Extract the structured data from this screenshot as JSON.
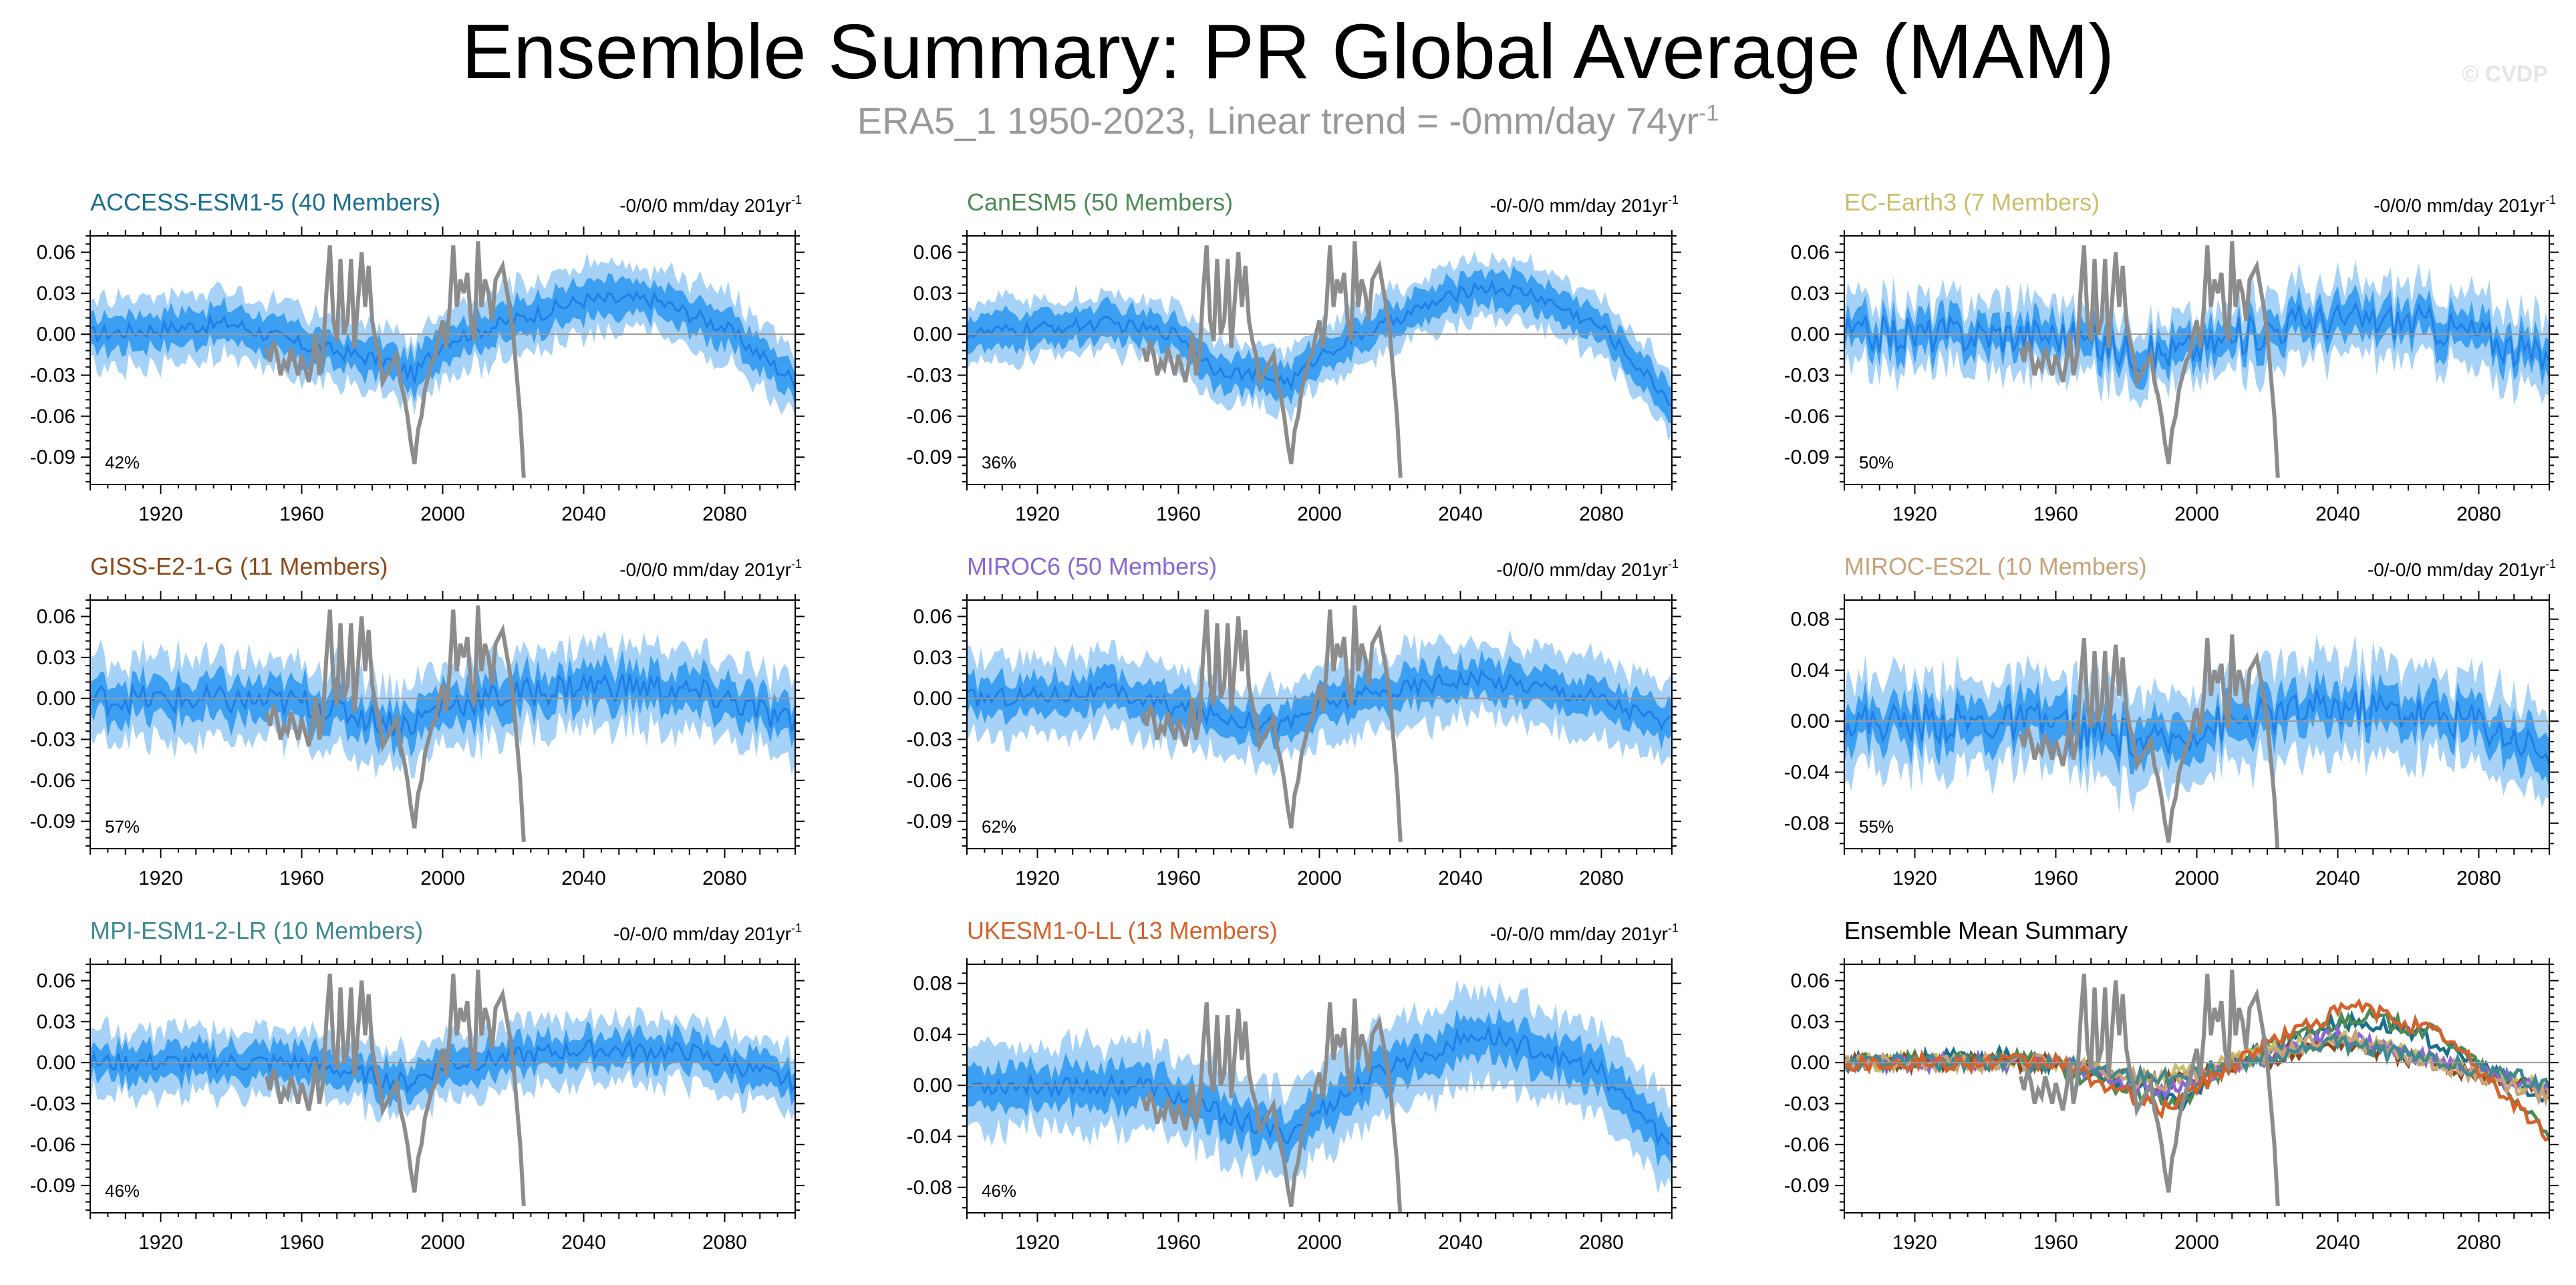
{
  "title": "Ensemble Summary: PR Global Average (MAM)",
  "subtitle": {
    "text": "ERA5_1 1950-2023, Linear trend = -0mm/day 74yr",
    "superscript": "-1"
  },
  "watermark": "© CVDP",
  "colors": {
    "band_outer": "#a6d2f8",
    "band_inner": "#3c9ff2",
    "mean_line": "#1f7fe6",
    "obs_line": "#8c8c8c",
    "zero_line": "#9a9a9a",
    "axis": "#000000"
  },
  "chart_data": [
    {
      "id": "access",
      "type": "area",
      "title": "ACCESS-ESM1-5 (40 Members)",
      "title_color": "#1a6e8e",
      "trend": "-0/0/0 mm/day 201yr",
      "trend_sup": "-1",
      "percent": "42%",
      "x_range": [
        1900,
        2100
      ],
      "y_range": [
        -0.11,
        0.072
      ],
      "xticks": [
        1920,
        1960,
        2000,
        2040,
        2080
      ],
      "yticks": [
        0.06,
        0.03,
        0.0,
        -0.03,
        -0.06,
        -0.09
      ],
      "ytick_labels": [
        "0.06",
        "0.03",
        "0.00",
        "-0.03",
        "-0.06",
        "-0.09"
      ],
      "mean_shape": [
        [
          1900,
          0
        ],
        [
          1940,
          0.008
        ],
        [
          1960,
          -0.008
        ],
        [
          1985,
          -0.02
        ],
        [
          1992,
          -0.03
        ],
        [
          2000,
          -0.005
        ],
        [
          2020,
          0.01
        ],
        [
          2040,
          0.025
        ],
        [
          2060,
          0.025
        ],
        [
          2080,
          0.005
        ],
        [
          2100,
          -0.035
        ]
      ],
      "noise": 0.006,
      "inner_width": 0.013,
      "outer_width": 0.025
    },
    {
      "id": "canesm",
      "type": "area",
      "title": "CanESM5 (50 Members)",
      "title_color": "#4e8a56",
      "trend": "-0/-0/0 mm/day 201yr",
      "trend_sup": "-1",
      "percent": "36%",
      "x_range": [
        1900,
        2100
      ],
      "y_range": [
        -0.11,
        0.072
      ],
      "xticks": [
        1920,
        1960,
        2000,
        2040,
        2080
      ],
      "yticks": [
        0.06,
        0.03,
        0.0,
        -0.03,
        -0.06,
        -0.09
      ],
      "ytick_labels": [
        "0.06",
        "0.03",
        "0.00",
        "-0.03",
        "-0.06",
        "-0.09"
      ],
      "mean_shape": [
        [
          1900,
          0
        ],
        [
          1940,
          0.008
        ],
        [
          1960,
          0
        ],
        [
          1970,
          -0.025
        ],
        [
          1992,
          -0.035
        ],
        [
          2000,
          -0.015
        ],
        [
          2025,
          0.015
        ],
        [
          2045,
          0.035
        ],
        [
          2060,
          0.03
        ],
        [
          2080,
          0.005
        ],
        [
          2100,
          -0.05
        ]
      ],
      "noise": 0.005,
      "inner_width": 0.012,
      "outer_width": 0.022
    },
    {
      "id": "ecearth",
      "type": "area",
      "title": "EC-Earth3 (7 Members)",
      "title_color": "#c9bf6a",
      "trend": "-0/0/0 mm/day 201yr",
      "trend_sup": "-1",
      "percent": "50%",
      "x_range": [
        1900,
        2100
      ],
      "y_range": [
        -0.11,
        0.072
      ],
      "xticks": [
        1920,
        1960,
        2000,
        2040,
        2080
      ],
      "yticks": [
        0.06,
        0.03,
        0.0,
        -0.03,
        -0.06,
        -0.09
      ],
      "ytick_labels": [
        "0.06",
        "0.03",
        "0.00",
        "-0.03",
        "-0.06",
        "-0.09"
      ],
      "mean_shape": [
        [
          1900,
          0
        ],
        [
          1960,
          0
        ],
        [
          1985,
          -0.015
        ],
        [
          2000,
          -0.01
        ],
        [
          2030,
          0.01
        ],
        [
          2060,
          0.01
        ],
        [
          2080,
          0
        ],
        [
          2100,
          -0.02
        ]
      ],
      "noise": 0.014,
      "inner_width": 0.012,
      "outer_width": 0.026
    },
    {
      "id": "giss",
      "type": "area",
      "title": "GISS-E2-1-G (11 Members)",
      "title_color": "#8a4a1a",
      "trend": "-0/0/0 mm/day 201yr",
      "trend_sup": "-1",
      "percent": "57%",
      "x_range": [
        1900,
        2100
      ],
      "y_range": [
        -0.11,
        0.072
      ],
      "xticks": [
        1920,
        1960,
        2000,
        2040,
        2080
      ],
      "yticks": [
        0.06,
        0.03,
        0.0,
        -0.03,
        -0.06,
        -0.09
      ],
      "ytick_labels": [
        "0.06",
        "0.03",
        "0.00",
        "-0.03",
        "-0.06",
        "-0.09"
      ],
      "mean_shape": [
        [
          1900,
          0
        ],
        [
          1960,
          -0.003
        ],
        [
          1990,
          -0.02
        ],
        [
          2000,
          -0.005
        ],
        [
          2040,
          0.01
        ],
        [
          2060,
          0.008
        ],
        [
          2080,
          0
        ],
        [
          2100,
          -0.02
        ]
      ],
      "noise": 0.011,
      "inner_width": 0.014,
      "outer_width": 0.03
    },
    {
      "id": "miroc6",
      "type": "area",
      "title": "MIROC6 (50 Members)",
      "title_color": "#8b66d6",
      "trend": "-0/0/0 mm/day 201yr",
      "trend_sup": "-1",
      "percent": "62%",
      "x_range": [
        1900,
        2100
      ],
      "y_range": [
        -0.11,
        0.072
      ],
      "xticks": [
        1920,
        1960,
        2000,
        2040,
        2080
      ],
      "yticks": [
        0.06,
        0.03,
        0.0,
        -0.03,
        -0.06,
        -0.09
      ],
      "ytick_labels": [
        "0.06",
        "0.03",
        "0.00",
        "-0.03",
        "-0.06",
        "-0.09"
      ],
      "mean_shape": [
        [
          1900,
          0
        ],
        [
          1940,
          0.005
        ],
        [
          1965,
          -0.01
        ],
        [
          1990,
          -0.02
        ],
        [
          2000,
          -0.005
        ],
        [
          2040,
          0.015
        ],
        [
          2060,
          0.01
        ],
        [
          2080,
          0
        ],
        [
          2100,
          -0.02
        ]
      ],
      "noise": 0.007,
      "inner_width": 0.013,
      "outer_width": 0.028
    },
    {
      "id": "mirocesl",
      "type": "area",
      "title": "MIROC-ES2L (10 Members)",
      "title_color": "#c9a27a",
      "trend": "-0/-0/0 mm/day 201yr",
      "trend_sup": "-1",
      "percent": "55%",
      "x_range": [
        1900,
        2100
      ],
      "y_range": [
        -0.1,
        0.095
      ],
      "xticks": [
        1920,
        1960,
        2000,
        2040,
        2080
      ],
      "yticks": [
        0.08,
        0.04,
        0.0,
        -0.04,
        -0.08
      ],
      "ytick_labels": [
        "0.08",
        "0.04",
        "0.00",
        "-0.04",
        "-0.08"
      ],
      "mean_shape": [
        [
          1900,
          0
        ],
        [
          1960,
          -0.002
        ],
        [
          1990,
          -0.02
        ],
        [
          2000,
          -0.005
        ],
        [
          2040,
          0.012
        ],
        [
          2060,
          0.008
        ],
        [
          2080,
          0
        ],
        [
          2100,
          -0.025
        ]
      ],
      "noise": 0.016,
      "inner_width": 0.016,
      "outer_width": 0.036
    },
    {
      "id": "mpi",
      "type": "area",
      "title": "MPI-ESM1-2-LR (10 Members)",
      "title_color": "#3f8a8e",
      "trend": "-0/-0/0 mm/day 201yr",
      "trend_sup": "-1",
      "percent": "46%",
      "x_range": [
        1900,
        2100
      ],
      "y_range": [
        -0.11,
        0.072
      ],
      "xticks": [
        1920,
        1960,
        2000,
        2040,
        2080
      ],
      "yticks": [
        0.06,
        0.03,
        0.0,
        -0.03,
        -0.06,
        -0.09
      ],
      "ytick_labels": [
        "0.06",
        "0.03",
        "0.00",
        "-0.03",
        "-0.06",
        "-0.09"
      ],
      "mean_shape": [
        [
          1900,
          0
        ],
        [
          1960,
          0
        ],
        [
          1990,
          -0.015
        ],
        [
          2000,
          -0.002
        ],
        [
          2040,
          0.01
        ],
        [
          2070,
          0.008
        ],
        [
          2100,
          -0.015
        ]
      ],
      "noise": 0.007,
      "inner_width": 0.012,
      "outer_width": 0.024
    },
    {
      "id": "ukesm",
      "type": "area",
      "title": "UKESM1-0-LL (13 Members)",
      "title_color": "#d4622a",
      "trend": "-0/-0/0 mm/day 201yr",
      "trend_sup": "-1",
      "percent": "46%",
      "x_range": [
        1900,
        2100
      ],
      "y_range": [
        -0.1,
        0.095
      ],
      "xticks": [
        1920,
        1960,
        2000,
        2040,
        2080
      ],
      "yticks": [
        0.08,
        0.04,
        0.0,
        -0.04,
        -0.08
      ],
      "ytick_labels": [
        "0.08",
        "0.04",
        "0.00",
        "-0.04",
        "-0.08"
      ],
      "mean_shape": [
        [
          1900,
          0
        ],
        [
          1950,
          0
        ],
        [
          1965,
          -0.015
        ],
        [
          1990,
          -0.04
        ],
        [
          2000,
          -0.02
        ],
        [
          2020,
          0.015
        ],
        [
          2045,
          0.04
        ],
        [
          2060,
          0.03
        ],
        [
          2080,
          0.01
        ],
        [
          2100,
          -0.05
        ]
      ],
      "noise": 0.008,
      "inner_width": 0.016,
      "outer_width": 0.034
    },
    {
      "id": "summary",
      "type": "line",
      "title": "Ensemble Mean Summary",
      "title_color": "#000000",
      "x_range": [
        1900,
        2100
      ],
      "y_range": [
        -0.11,
        0.072
      ],
      "xticks": [
        1920,
        1960,
        2000,
        2040,
        2080
      ],
      "yticks": [
        0.06,
        0.03,
        0.0,
        -0.03,
        -0.06,
        -0.09
      ],
      "ytick_labels": [
        "0.06",
        "0.03",
        "0.00",
        "-0.03",
        "-0.06",
        "-0.09"
      ],
      "series_colors": [
        "#1a6e8e",
        "#4e8a56",
        "#c9bf6a",
        "#8a4a1a",
        "#8b66d6",
        "#c9a27a",
        "#3f8a8e",
        "#d4622a"
      ]
    }
  ],
  "obs_series": {
    "name": "ERA5_1",
    "x": [
      1950,
      1951,
      1952,
      1953,
      1954,
      1955,
      1956,
      1957,
      1958,
      1959,
      1960,
      1961,
      1962,
      1963,
      1964,
      1965,
      1966,
      1967,
      1968,
      1969,
      1970,
      1971,
      1972,
      1973,
      1974,
      1975,
      1976,
      1977,
      1978,
      1979,
      1980,
      1981,
      1982,
      1983,
      1984,
      1985,
      1986,
      1987,
      1988,
      1989,
      1990,
      1991,
      1992,
      1993,
      1994,
      1995,
      1996,
      1997,
      1998,
      1999,
      2000,
      2001,
      2002,
      2003,
      2004,
      2005,
      2006,
      2007,
      2008,
      2009,
      2010,
      2011,
      2012,
      2013,
      2014,
      2015,
      2016,
      2017,
      2018,
      2019,
      2020,
      2021,
      2022,
      2023
    ],
    "y": [
      -0.01,
      -0.02,
      -0.005,
      -0.015,
      -0.03,
      -0.02,
      -0.025,
      -0.01,
      -0.02,
      -0.03,
      -0.015,
      -0.025,
      -0.035,
      -0.02,
      0.0,
      -0.03,
      -0.015,
      0.03,
      0.065,
      0.01,
      -0.005,
      0.055,
      0.0,
      0.01,
      0.055,
      -0.01,
      0.025,
      0.06,
      0.02,
      0.05,
      0.01,
      -0.005,
      -0.015,
      -0.035,
      -0.03,
      -0.025,
      -0.02,
      -0.015,
      -0.035,
      -0.045,
      -0.06,
      -0.08,
      -0.095,
      -0.07,
      -0.06,
      -0.04,
      -0.03,
      -0.02,
      -0.015,
      0.0,
      0.01,
      -0.01,
      0.02,
      0.065,
      0.02,
      0.04,
      0.03,
      0.045,
      0.01,
      -0.005,
      0.068,
      0.02,
      0.04,
      0.03,
      0.01,
      0.04,
      0.045,
      0.05,
      0.035,
      0.02,
      0.0,
      -0.03,
      -0.06,
      -0.105
    ]
  }
}
